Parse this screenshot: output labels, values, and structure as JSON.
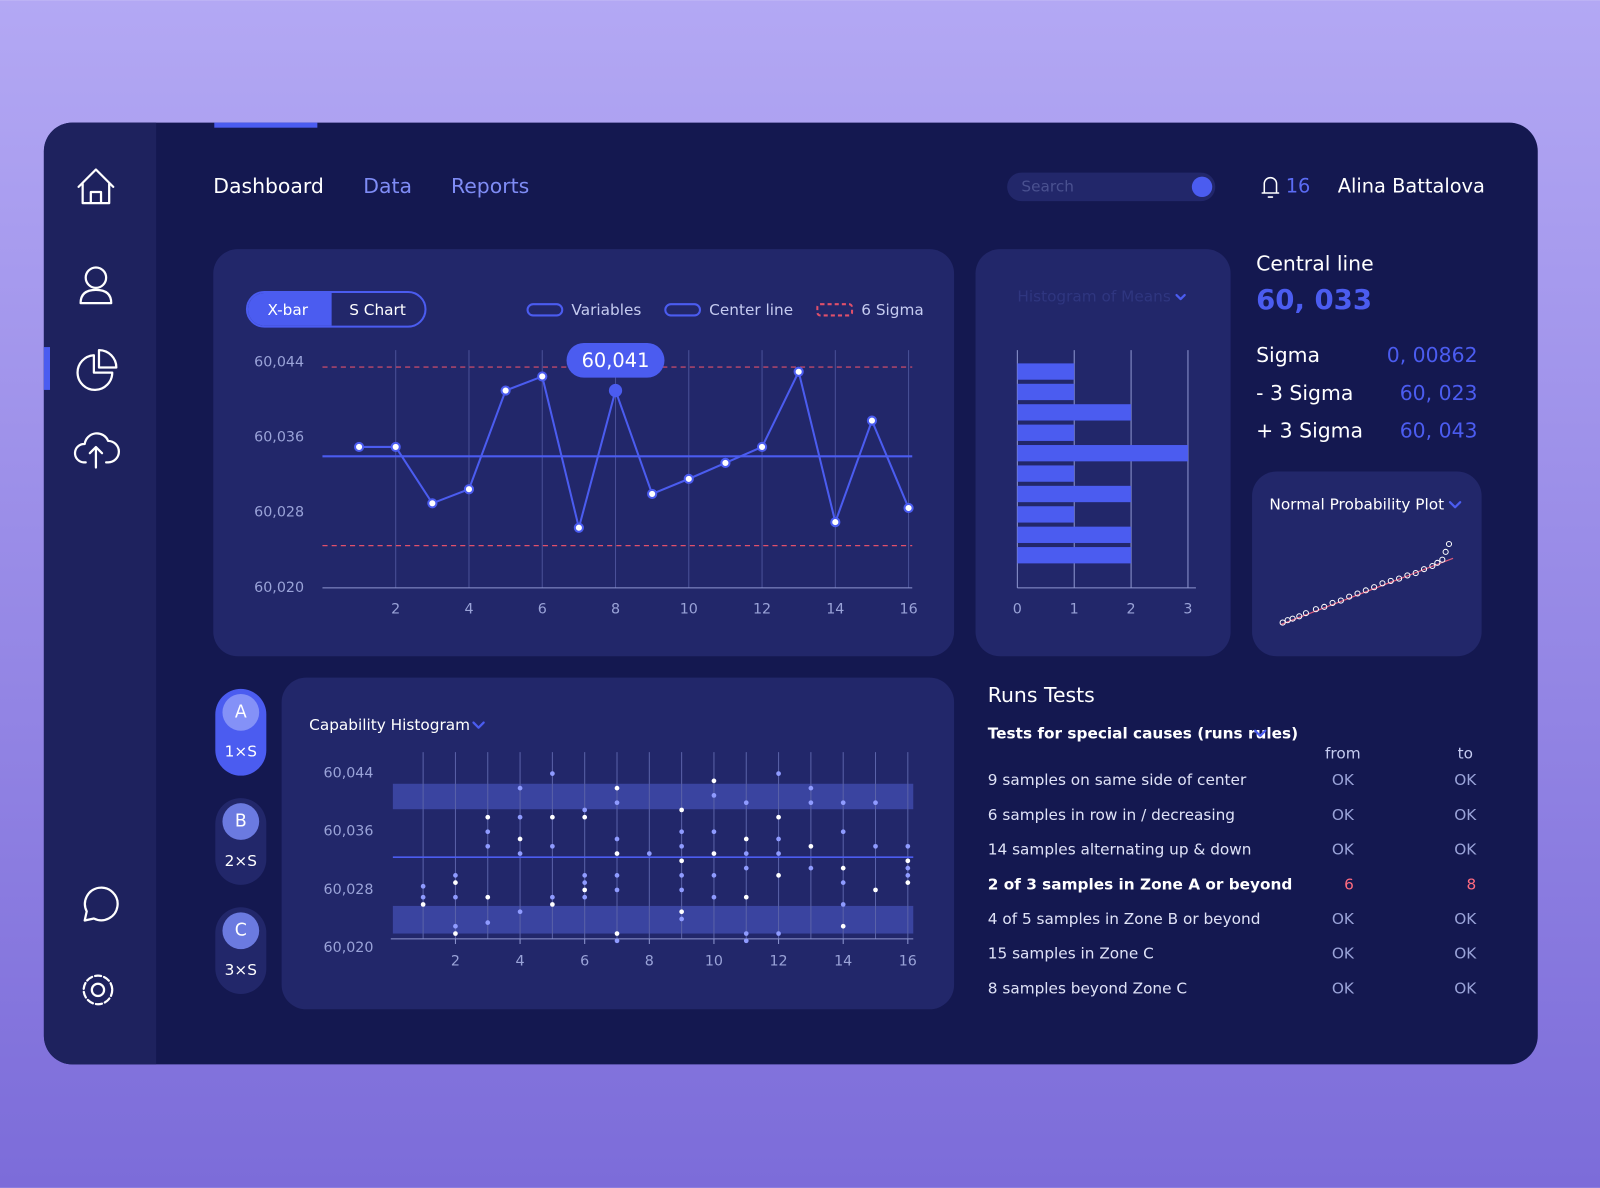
{
  "nav": {
    "tabs": [
      "Dashboard",
      "Data",
      "Reports"
    ],
    "search_placeholder": "Search",
    "notifications": "16",
    "user": "Alina Battalova"
  },
  "xbar_chart": {
    "type": "line",
    "toggle": [
      "X-bar",
      "S Chart"
    ],
    "legend": [
      "Variables",
      "Center line",
      "6 Sigma"
    ],
    "x": [
      1,
      2,
      3,
      4,
      5,
      6,
      7,
      8,
      9,
      10,
      11,
      12,
      13,
      14,
      15,
      16
    ],
    "values": [
      60.035,
      60.035,
      60.029,
      60.0305,
      60.041,
      60.0425,
      60.0264,
      60.041,
      60.03,
      60.0316,
      60.0333,
      60.035,
      60.043,
      60.027,
      60.0378,
      60.0285
    ],
    "value_labels": [
      null,
      null,
      null,
      null,
      null,
      null,
      null,
      "60,041",
      null,
      null,
      null,
      null,
      null,
      null,
      null,
      null
    ],
    "color": "#4b5cf0",
    "center_line": 60.034,
    "sigma_limits": [
      60.0245,
      60.0435
    ],
    "xlim": [
      0,
      16.1
    ],
    "ylim": [
      60.02,
      60.044
    ],
    "xticks": [
      2,
      4,
      6,
      8,
      10,
      12,
      14,
      16
    ],
    "yticks": [
      {
        "value": 60.02,
        "label": "60,020"
      },
      {
        "value": 60.028,
        "label": "60,028"
      },
      {
        "value": 60.036,
        "label": "60,036"
      },
      {
        "value": 60.044,
        "label": "60,044"
      }
    ],
    "grid": true
  },
  "histogram": {
    "type": "bar",
    "orientation": "horizontal",
    "title": "Histogram of Means",
    "values": [
      1,
      1,
      2,
      1,
      3,
      1,
      2,
      1,
      2,
      2
    ],
    "color": "#4b5cf0",
    "xlim": [
      0,
      3.14
    ],
    "xticks": [
      0,
      1,
      2,
      3
    ],
    "grid": true
  },
  "stats": {
    "central_line": {
      "label": "Central line",
      "value": "60, 033"
    },
    "rows": [
      {
        "label": "Sigma",
        "value": "0, 00862"
      },
      {
        "label": "- 3 Sigma",
        "value": "60, 023"
      },
      {
        "label": "+ 3 Sigma",
        "value": "60, 043"
      }
    ]
  },
  "probability_plot": {
    "type": "scatter",
    "title": "Normal Probability Plot",
    "x": [
      0,
      0.03,
      0.06,
      0.1,
      0.14,
      0.2,
      0.25,
      0.3,
      0.35,
      0.4,
      0.45,
      0.5,
      0.55,
      0.6,
      0.65,
      0.7,
      0.75,
      0.8,
      0.85,
      0.9,
      0.93,
      0.96,
      0.98,
      1.0
    ],
    "y": [
      0,
      0.03,
      0.05,
      0.08,
      0.12,
      0.17,
      0.2,
      0.25,
      0.28,
      0.33,
      0.37,
      0.41,
      0.45,
      0.5,
      0.53,
      0.56,
      0.6,
      0.63,
      0.68,
      0.72,
      0.76,
      0.8,
      0.9,
      1.0
    ],
    "color": "#ffffff"
  },
  "capability_chart": {
    "type": "strip",
    "title": "Capability Histogram",
    "x": [
      1,
      1,
      1,
      2,
      2,
      2,
      2,
      2,
      3,
      3,
      3,
      3,
      3,
      4,
      4,
      4,
      4,
      4,
      5,
      5,
      5,
      5,
      5,
      6,
      6,
      6,
      6,
      6,
      6,
      7,
      7,
      7,
      7,
      7,
      7,
      7,
      7,
      8,
      9,
      9,
      9,
      9,
      9,
      9,
      9,
      9,
      10,
      10,
      10,
      10,
      10,
      10,
      11,
      11,
      11,
      11,
      11,
      11,
      11,
      12,
      12,
      12,
      12,
      12,
      12,
      13,
      13,
      13,
      13,
      14,
      14,
      14,
      14,
      14,
      14,
      15,
      15,
      15,
      16,
      16,
      16,
      16,
      16
    ],
    "y": [
      60.026,
      60.027,
      60.0285,
      60.022,
      60.023,
      60.027,
      60.029,
      60.03,
      60.0235,
      60.027,
      60.034,
      60.036,
      60.038,
      60.025,
      60.033,
      60.035,
      60.038,
      60.042,
      60.026,
      60.027,
      60.034,
      60.038,
      60.044,
      60.027,
      60.028,
      60.029,
      60.03,
      60.038,
      60.039,
      60.021,
      60.022,
      60.028,
      60.03,
      60.033,
      60.035,
      60.04,
      60.042,
      60.033,
      60.024,
      60.025,
      60.028,
      60.03,
      60.032,
      60.034,
      60.036,
      60.039,
      60.027,
      60.03,
      60.033,
      60.036,
      60.041,
      60.043,
      60.021,
      60.022,
      60.027,
      60.031,
      60.033,
      60.035,
      60.04,
      60.022,
      60.03,
      60.033,
      60.035,
      60.038,
      60.044,
      60.031,
      60.034,
      60.04,
      60.042,
      60.023,
      60.026,
      60.029,
      60.031,
      60.036,
      60.04,
      60.028,
      60.034,
      60.04,
      60.029,
      60.03,
      60.031,
      60.032,
      60.034
    ],
    "bands": [
      [
        60.0391,
        60.0426
      ],
      [
        60.022,
        60.0258
      ]
    ],
    "center_line": 60.0325,
    "color": "#8f9bff",
    "band_color": "#3a44a0",
    "xlim": [
      0,
      16.2
    ],
    "ylim": [
      60.02,
      60.044
    ],
    "xticks": [
      2,
      4,
      6,
      8,
      10,
      12,
      14,
      16
    ],
    "yticks": [
      {
        "value": 60.02,
        "label": "60,020"
      },
      {
        "value": 60.028,
        "label": "60,028"
      },
      {
        "value": 60.036,
        "label": "60,036"
      },
      {
        "value": 60.044,
        "label": "60,044"
      }
    ],
    "grid": true
  },
  "sample_buttons": [
    {
      "letter": "A",
      "label": "1×S"
    },
    {
      "letter": "B",
      "label": "2×S"
    },
    {
      "letter": "C",
      "label": "3×S"
    }
  ],
  "runs_tests": {
    "title": "Runs Tests",
    "subtitle": "Tests for special causes (runs rules)",
    "columns": [
      "from",
      "to"
    ],
    "rows": [
      {
        "test": "9 samples on same side of center",
        "from": "OK",
        "to": "OK"
      },
      {
        "test": "6 samples in row in / decreasing",
        "from": "OK",
        "to": "OK"
      },
      {
        "test": "14 samples alternating up & down",
        "from": "OK",
        "to": "OK"
      },
      {
        "test": "2 of 3 samples in Zone A or beyond",
        "from": "6",
        "to": "8",
        "alert": true
      },
      {
        "test": "4 of 5 samples in Zone B or beyond",
        "from": "OK",
        "to": "OK"
      },
      {
        "test": "15 samples in Zone C",
        "from": "OK",
        "to": "OK"
      },
      {
        "test": "8 samples beyond Zone C",
        "from": "OK",
        "to": "OK"
      }
    ]
  }
}
